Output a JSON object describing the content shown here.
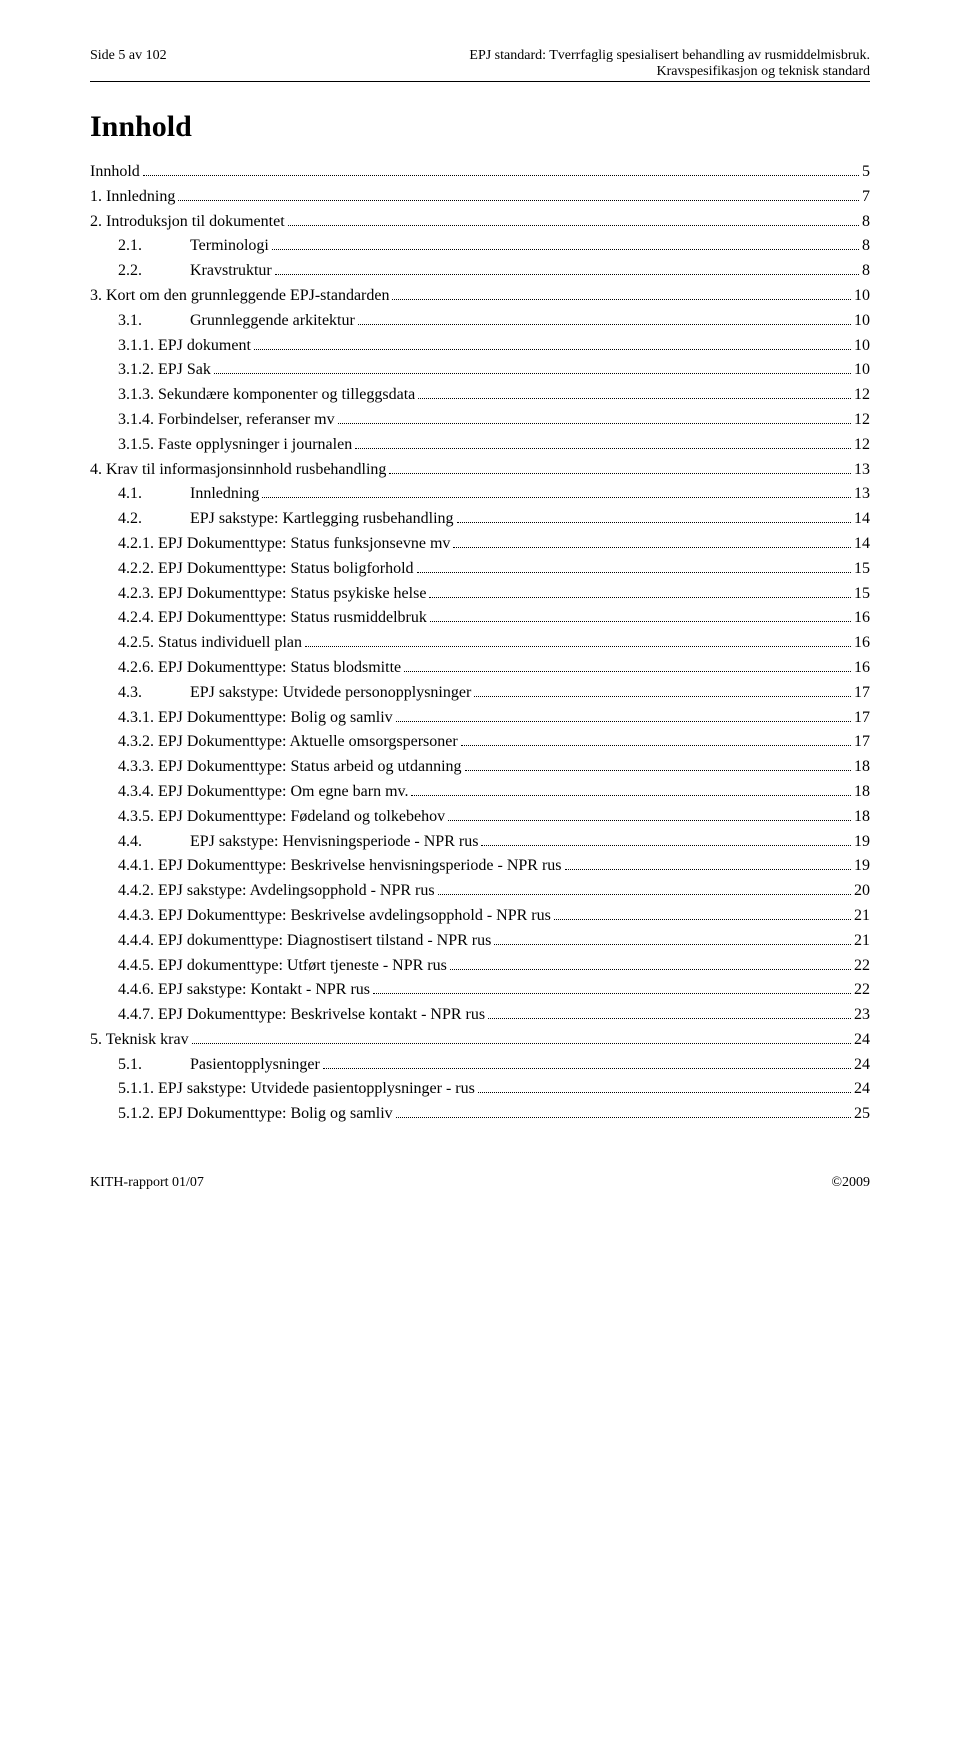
{
  "header": {
    "left": "Side 5 av 102",
    "right_line1": "EPJ standard: Tverrfaglig spesialisert behandling av rusmiddelmisbruk.",
    "right_line2": "Kravspesifikasjon og teknisk standard"
  },
  "title": "Innhold",
  "toc": [
    {
      "indent": 0,
      "label": "Innhold",
      "page": "5"
    },
    {
      "indent": 0,
      "label": "1. Innledning",
      "page": "7"
    },
    {
      "indent": 0,
      "label": "2. Introduksjon til dokumentet",
      "page": "8"
    },
    {
      "indent": 1,
      "label": "2.1.",
      "title": "Terminologi",
      "page": "8"
    },
    {
      "indent": 1,
      "label": "2.2.",
      "title": "Kravstruktur",
      "page": "8"
    },
    {
      "indent": 0,
      "label": "3. Kort om den grunnleggende EPJ-standarden",
      "page": "10"
    },
    {
      "indent": 1,
      "label": "3.1.",
      "title": "Grunnleggende arkitektur",
      "page": "10"
    },
    {
      "indent": 2,
      "label": "3.1.1.  EPJ dokument",
      "page": "10"
    },
    {
      "indent": 2,
      "label": "3.1.2.  EPJ Sak",
      "page": "10"
    },
    {
      "indent": 2,
      "label": "3.1.3.  Sekundære komponenter og tilleggsdata",
      "page": "12"
    },
    {
      "indent": 2,
      "label": "3.1.4.  Forbindelser, referanser mv",
      "page": "12"
    },
    {
      "indent": 2,
      "label": "3.1.5.  Faste opplysninger i journalen",
      "page": "12"
    },
    {
      "indent": 0,
      "label": "4. Krav til informasjonsinnhold rusbehandling",
      "page": "13"
    },
    {
      "indent": 1,
      "label": "4.1.",
      "title": "Innledning",
      "page": "13"
    },
    {
      "indent": 1,
      "label": "4.2.",
      "title": "EPJ sakstype: Kartlegging rusbehandling",
      "page": "14"
    },
    {
      "indent": 2,
      "label": "4.2.1.  EPJ Dokumenttype: Status funksjonsevne mv",
      "page": "14"
    },
    {
      "indent": 2,
      "label": "4.2.2.  EPJ Dokumenttype: Status boligforhold",
      "page": "15"
    },
    {
      "indent": 2,
      "label": "4.2.3.  EPJ Dokumenttype: Status psykiske helse",
      "page": "15"
    },
    {
      "indent": 2,
      "label": "4.2.4.  EPJ Dokumenttype: Status rusmiddelbruk",
      "page": "16"
    },
    {
      "indent": 2,
      "label": "4.2.5.  Status individuell plan",
      "page": "16"
    },
    {
      "indent": 2,
      "label": "4.2.6.  EPJ Dokumenttype: Status blodsmitte",
      "page": "16"
    },
    {
      "indent": 1,
      "label": "4.3.",
      "title": "EPJ sakstype: Utvidede personopplysninger",
      "page": "17"
    },
    {
      "indent": 2,
      "label": "4.3.1.  EPJ Dokumenttype: Bolig og samliv",
      "page": "17"
    },
    {
      "indent": 2,
      "label": "4.3.2.  EPJ Dokumenttype: Aktuelle omsorgspersoner",
      "page": "17"
    },
    {
      "indent": 2,
      "label": "4.3.3.  EPJ Dokumenttype: Status arbeid og utdanning",
      "page": "18"
    },
    {
      "indent": 2,
      "label": "4.3.4.  EPJ Dokumenttype: Om egne barn mv.",
      "page": "18"
    },
    {
      "indent": 2,
      "label": "4.3.5.  EPJ Dokumenttype: Fødeland og tolkebehov",
      "page": "18"
    },
    {
      "indent": 1,
      "label": "4.4.",
      "title": "EPJ sakstype: Henvisningsperiode - NPR rus",
      "page": "19"
    },
    {
      "indent": 2,
      "label": "4.4.1.  EPJ Dokumenttype: Beskrivelse henvisningsperiode - NPR rus",
      "page": "19"
    },
    {
      "indent": 2,
      "label": "4.4.2.  EPJ sakstype: Avdelingsopphold - NPR rus",
      "page": "20"
    },
    {
      "indent": 2,
      "label": "4.4.3.  EPJ Dokumenttype: Beskrivelse avdelingsopphold - NPR rus",
      "page": "21"
    },
    {
      "indent": 2,
      "label": "4.4.4.  EPJ dokumenttype: Diagnostisert tilstand - NPR rus",
      "page": "21"
    },
    {
      "indent": 2,
      "label": "4.4.5.  EPJ dokumenttype: Utført tjeneste - NPR rus",
      "page": "22"
    },
    {
      "indent": 2,
      "label": "4.4.6.  EPJ sakstype: Kontakt - NPR rus",
      "page": "22"
    },
    {
      "indent": 2,
      "label": "4.4.7.  EPJ Dokumenttype: Beskrivelse kontakt - NPR rus",
      "page": "23"
    },
    {
      "indent": 0,
      "label": "5. Teknisk krav",
      "page": "24"
    },
    {
      "indent": 1,
      "label": "5.1.",
      "title": "Pasientopplysninger",
      "page": "24"
    },
    {
      "indent": 2,
      "label": "5.1.1.  EPJ sakstype: Utvidede pasientopplysninger - rus",
      "page": "24"
    },
    {
      "indent": 2,
      "label": "5.1.2.  EPJ Dokumenttype: Bolig og samliv",
      "page": "25"
    }
  ],
  "footer": {
    "left": "KITH-rapport 01/07",
    "right": "©2009"
  }
}
